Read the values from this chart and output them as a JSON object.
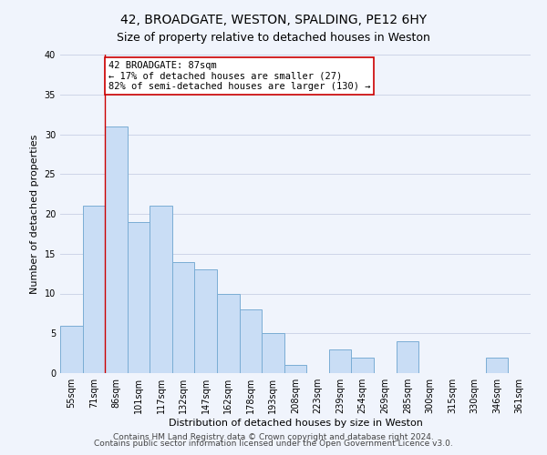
{
  "title": "42, BROADGATE, WESTON, SPALDING, PE12 6HY",
  "subtitle": "Size of property relative to detached houses in Weston",
  "xlabel": "Distribution of detached houses by size in Weston",
  "ylabel": "Number of detached properties",
  "bar_labels": [
    "55sqm",
    "71sqm",
    "86sqm",
    "101sqm",
    "117sqm",
    "132sqm",
    "147sqm",
    "162sqm",
    "178sqm",
    "193sqm",
    "208sqm",
    "223sqm",
    "239sqm",
    "254sqm",
    "269sqm",
    "285sqm",
    "300sqm",
    "315sqm",
    "330sqm",
    "346sqm",
    "361sqm"
  ],
  "bar_values": [
    6,
    21,
    31,
    19,
    21,
    14,
    13,
    10,
    8,
    5,
    1,
    0,
    3,
    2,
    0,
    4,
    0,
    0,
    0,
    2,
    0
  ],
  "bar_color": "#c9ddf5",
  "bar_edge_color": "#7aadd4",
  "vline_x_index": 2,
  "vline_color": "#cc0000",
  "annotation_line1": "42 BROADGATE: 87sqm",
  "annotation_line2": "← 17% of detached houses are smaller (27)",
  "annotation_line3": "82% of semi-detached houses are larger (130) →",
  "annotation_box_edge": "#cc0000",
  "ylim": [
    0,
    40
  ],
  "yticks": [
    0,
    5,
    10,
    15,
    20,
    25,
    30,
    35,
    40
  ],
  "footer_line1": "Contains HM Land Registry data © Crown copyright and database right 2024.",
  "footer_line2": "Contains public sector information licensed under the Open Government Licence v3.0.",
  "background_color": "#f0f4fc",
  "grid_color": "#cdd5e8",
  "title_fontsize": 10,
  "subtitle_fontsize": 9,
  "axis_label_fontsize": 8,
  "tick_fontsize": 7,
  "footer_fontsize": 6.5
}
